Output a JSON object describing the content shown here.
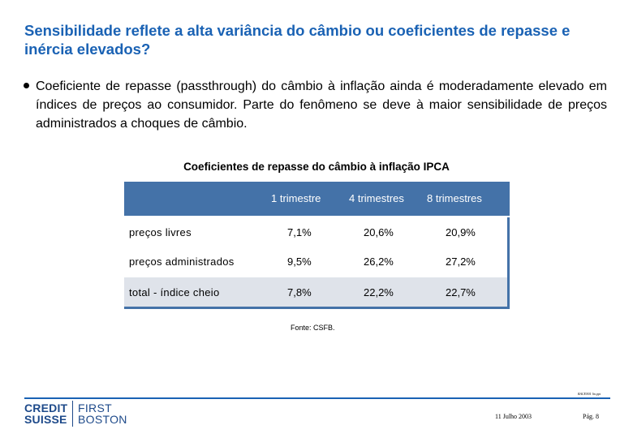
{
  "slide": {
    "title": "Sensibilidade reflete a alta variância do câmbio ou coeficientes de repasse e inércia elevados?",
    "bullet": "Coeficiente de repasse (passthrough) do câmbio à inflação ainda é moderadamente elevado em índices de preços ao consumidor. Parte do fenômeno se deve à maior sensibilidade de preços administrados a choques de câmbio."
  },
  "table": {
    "caption": "Coeficientes de repasse do câmbio à inflação IPCA",
    "columns": [
      "1 trimestre",
      "4 trimestres",
      "8 trimestres"
    ],
    "rows": [
      {
        "label": "preços livres",
        "values": [
          "7,1%",
          "20,6%",
          "20,9%"
        ]
      },
      {
        "label": "preços administrados",
        "values": [
          "9,5%",
          "26,2%",
          "27,2%"
        ]
      },
      {
        "label": "total - índice cheio",
        "values": [
          "7,8%",
          "22,2%",
          "22,7%"
        ]
      }
    ],
    "source": "Fonte: CSFB."
  },
  "footer": {
    "code": "BACEN01 lin.ppt",
    "logo_line1_left": "CREDIT",
    "logo_line2_left": "SUISSE",
    "logo_line1_right": "FIRST",
    "logo_line2_right": "BOSTON",
    "date": "11 Julho 2003",
    "page": "Pág. 8"
  },
  "colors": {
    "title": "#1a62b4",
    "header_bg": "#4472a8",
    "row_shade": "#dfe3ea",
    "logo": "#1e4a8a"
  }
}
